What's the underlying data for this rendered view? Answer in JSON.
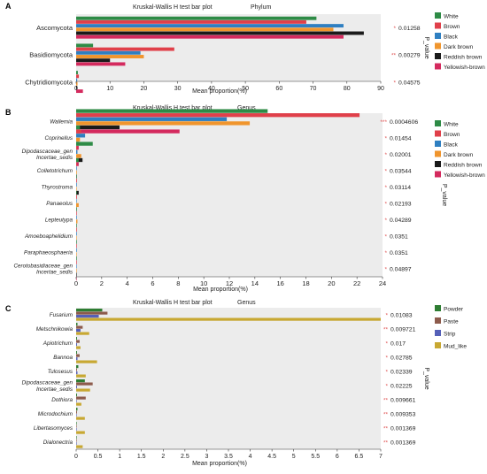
{
  "figure": {
    "axis_title_x": "Mean proportion(%)",
    "axis_title_pvalue": "P_value"
  },
  "panels": [
    {
      "letter": "A",
      "title": "Kruskal-Wallis H test bar plot",
      "rank": "Phylum",
      "legend": [
        "White",
        "Brown",
        "Black",
        "Dark brown",
        "Reddish brown",
        "Yellowish-brown"
      ],
      "pvalues": [
        {
          "stars": "*",
          "value": "0.01258"
        },
        {
          "stars": "**",
          "value": "0.00279"
        },
        {
          "stars": "*",
          "value": "0.04575"
        }
      ]
    },
    {
      "letter": "B",
      "title": "Kruskal-Wallis H test bar plot",
      "rank": "Genus",
      "legend": [
        "White",
        "Brown",
        "Black",
        "Dark brown",
        "Reddish brown",
        "Yellowish-brown"
      ],
      "pvalues": [
        {
          "stars": "***",
          "value": "0.0004606"
        },
        {
          "stars": "*",
          "value": "0.01454"
        },
        {
          "stars": "*",
          "value": "0.02001"
        },
        {
          "stars": "*",
          "value": "0.03544"
        },
        {
          "stars": "*",
          "value": "0.03114"
        },
        {
          "stars": "*",
          "value": "0.02193"
        },
        {
          "stars": "*",
          "value": "0.04289"
        },
        {
          "stars": "*",
          "value": "0.0351"
        },
        {
          "stars": "*",
          "value": "0.0351"
        },
        {
          "stars": "*",
          "value": "0.04897"
        }
      ]
    },
    {
      "letter": "C",
      "title": "Kruskal-Wallis H test bar plot",
      "rank": "Genus",
      "legend": [
        "Powder",
        "Paste",
        "Strip",
        "Mud_like"
      ],
      "pvalues": [
        {
          "stars": "*",
          "value": "0.01083"
        },
        {
          "stars": "**",
          "value": "0.009721"
        },
        {
          "stars": "*",
          "value": "0.017"
        },
        {
          "stars": "*",
          "value": "0.02785"
        },
        {
          "stars": "*",
          "value": "0.02339"
        },
        {
          "stars": "*",
          "value": "0.02225"
        },
        {
          "stars": "**",
          "value": "0.009661"
        },
        {
          "stars": "**",
          "value": "0.009353"
        },
        {
          "stars": "**",
          "value": "0.001369"
        },
        {
          "stars": "**",
          "value": "0.001369"
        }
      ]
    }
  ],
  "colors": {
    "White": "#2e8b46",
    "Brown": "#e0404a",
    "Black": "#2f7fc1",
    "Dark brown": "#f0952d",
    "Reddish brown": "#1a1a1a",
    "Yellowish-brown": "#d42a5e",
    "Powder": "#2e7d32",
    "Paste": "#8d5b4c",
    "Strip": "#5560b8",
    "Mud_like": "#c8a832",
    "panel_bg": "#ececec",
    "star": "#e05555"
  },
  "chart_data": [
    {
      "type": "bar",
      "orientation": "horizontal",
      "title": "Kruskal-Wallis H test bar plot",
      "subtitle": "Phylum",
      "xlabel": "Mean proportion(%)",
      "xlim": [
        0,
        90
      ],
      "xticks": [
        0,
        10,
        20,
        30,
        40,
        50,
        60,
        70,
        80,
        90
      ],
      "xtick_labels": [
        "0",
        "10",
        "20",
        "30",
        "40",
        "50",
        "60",
        "70",
        "80",
        "90"
      ],
      "categories": [
        "Ascomycota",
        "Basidiomycota",
        "Chytridiomycota"
      ],
      "series": [
        {
          "name": "White",
          "values": [
            71,
            5,
            0.5
          ]
        },
        {
          "name": "Brown",
          "values": [
            68,
            29,
            0.8
          ]
        },
        {
          "name": "Black",
          "values": [
            79,
            19,
            0.3
          ]
        },
        {
          "name": "Dark brown",
          "values": [
            76,
            20,
            0.4
          ]
        },
        {
          "name": "Reddish brown",
          "values": [
            85,
            10,
            0.3
          ]
        },
        {
          "name": "Yellowish-brown",
          "values": [
            79,
            14.5,
            2
          ]
        }
      ],
      "legend_position": "right"
    },
    {
      "type": "bar",
      "orientation": "horizontal",
      "title": "Kruskal-Wallis H test bar plot",
      "subtitle": "Genus",
      "xlabel": "Mean proportion(%)",
      "xlim": [
        0,
        24
      ],
      "xticks": [
        0,
        2,
        4,
        6,
        8,
        10,
        12,
        14,
        16,
        18,
        20,
        22,
        24
      ],
      "xtick_labels": [
        "0",
        "2",
        "4",
        "6",
        "8",
        "10",
        "12",
        "14",
        "16",
        "18",
        "20",
        "22",
        "24"
      ],
      "categories": [
        "Wallemia",
        "Coprinellus",
        "Dipodascaceae_gen_Incertae_sedis",
        "Colletotrichum",
        "Thyrostroma",
        "Panaeolus",
        "Lepteutypa",
        "Amoeboaphelidium",
        "Paraphaeosphaeria",
        "Cerotobasidiaceae_gen_Incertae_sedis"
      ],
      "category_lines": [
        [
          "Wallemia"
        ],
        [
          "Coprinellus"
        ],
        [
          "Dipodascaceae_gen",
          "Incertae_sedis"
        ],
        [
          "Colletotrichum"
        ],
        [
          "Thyrostroma"
        ],
        [
          "Panaeolus"
        ],
        [
          "Lepteutypa"
        ],
        [
          "Amoeboaphelidium"
        ],
        [
          "Paraphaeosphaeria"
        ],
        [
          "Cerotobasidiaceae_gen",
          "Incertae_sedis"
        ]
      ],
      "series": [
        {
          "name": "White",
          "values": [
            15,
            0.3,
            1.3,
            0.2,
            0.02,
            0.02,
            0.05,
            0.02,
            0.02,
            0.02
          ]
        },
        {
          "name": "Brown",
          "values": [
            22.2,
            0.4,
            0.1,
            0.05,
            0.05,
            0.05,
            0.02,
            0.05,
            0.02,
            0.02
          ]
        },
        {
          "name": "Black",
          "values": [
            11.8,
            0.7,
            0.1,
            0.05,
            0.05,
            0.02,
            0.05,
            0.05,
            0.05,
            0.02
          ]
        },
        {
          "name": "Dark brown",
          "values": [
            13.6,
            0.3,
            0.4,
            0.05,
            0.02,
            0.2,
            0.1,
            0.02,
            0.02,
            0.02
          ]
        },
        {
          "name": "Reddish brown",
          "values": [
            3.4,
            0.2,
            0.5,
            0.05,
            0.2,
            0.02,
            0.02,
            0.02,
            0.02,
            0.02
          ]
        },
        {
          "name": "Yellowish-brown",
          "values": [
            8.1,
            0.2,
            0.2,
            0.05,
            0.05,
            0.02,
            0.02,
            0.02,
            0.02,
            0.02
          ]
        }
      ],
      "legend_position": "right"
    },
    {
      "type": "bar",
      "orientation": "horizontal",
      "title": "Kruskal-Wallis H test bar plot",
      "subtitle": "Genus",
      "xlabel": "Mean proportion(%)",
      "xlim": [
        0,
        7
      ],
      "xticks": [
        0,
        0.5,
        1,
        1.5,
        2,
        2.5,
        3,
        3.5,
        4,
        4.5,
        5,
        5.5,
        6,
        6.5,
        7
      ],
      "xtick_labels": [
        "0",
        "0.5",
        "1",
        "1.5",
        "2",
        "2.5",
        "3",
        "3.5",
        "4",
        "4.5",
        "5",
        "5.5",
        "6",
        "6.5",
        "7"
      ],
      "categories": [
        "Fusarium",
        "Metschnikowia",
        "Apiotrichum",
        "Bannoa",
        "Tulosesus",
        "Dipodascaceae_gen_Incertae_sedis",
        "Dothiora",
        "Microdochium",
        "Libertasomyces",
        "Dialonectria"
      ],
      "category_lines": [
        [
          "Fusarium"
        ],
        [
          "Metschnikowia"
        ],
        [
          "Apiotrichum"
        ],
        [
          "Bannoa"
        ],
        [
          "Tulosesus"
        ],
        [
          "Dipodascaceae_gen",
          "Incertae_sedis"
        ],
        [
          "Dothiora"
        ],
        [
          "Microdochium"
        ],
        [
          "Libertasomyces"
        ],
        [
          "Dialonectria"
        ]
      ],
      "series": [
        {
          "name": "Powder",
          "values": [
            0.6,
            0.03,
            0.02,
            0.02,
            0.05,
            0.2,
            0.02,
            0.03,
            0.01,
            0.01
          ]
        },
        {
          "name": "Paste",
          "values": [
            0.72,
            0.15,
            0.08,
            0.08,
            0.02,
            0.38,
            0.22,
            0.02,
            0.01,
            0.01
          ]
        },
        {
          "name": "Strip",
          "values": [
            0.52,
            0.1,
            0.02,
            0.03,
            0.03,
            0.02,
            0.01,
            0.01,
            0.01,
            0.01
          ]
        },
        {
          "name": "Mud_like",
          "values": [
            7.0,
            0.3,
            0.1,
            0.48,
            0.22,
            0.32,
            0.12,
            0.2,
            0.2,
            0.15
          ]
        }
      ],
      "legend_position": "right"
    }
  ]
}
